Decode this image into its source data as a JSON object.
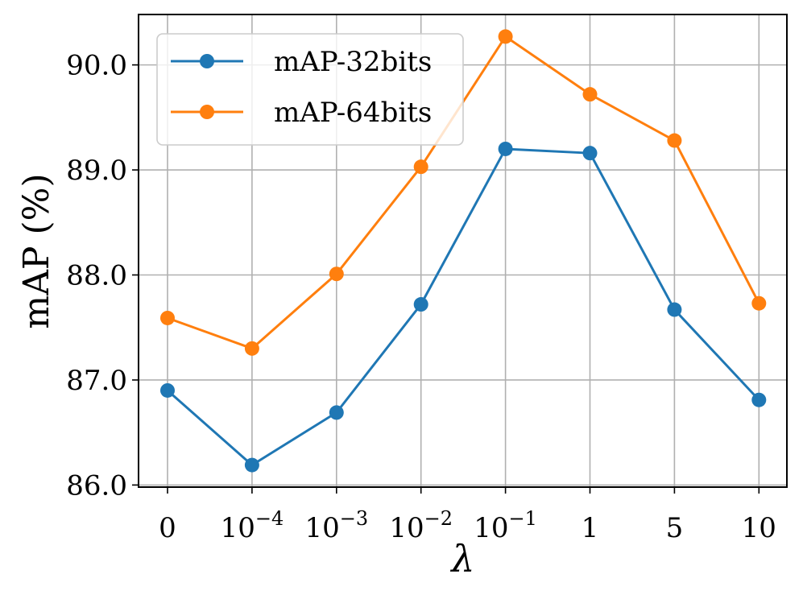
{
  "chart_data": {
    "type": "line",
    "title": "",
    "xlabel": "λ",
    "ylabel": "mAP (%)",
    "categories": [
      {
        "base": "0",
        "exp": ""
      },
      {
        "base": "10",
        "exp": "−4"
      },
      {
        "base": "10",
        "exp": "−3"
      },
      {
        "base": "10",
        "exp": "−2"
      },
      {
        "base": "10",
        "exp": "−1"
      },
      {
        "base": "1",
        "exp": ""
      },
      {
        "base": "5",
        "exp": ""
      },
      {
        "base": "10",
        "exp": ""
      }
    ],
    "ylim": [
      85.98,
      90.48
    ],
    "yticks": [
      "86.0",
      "87.0",
      "88.0",
      "89.0",
      "90.0"
    ],
    "ytick_values": [
      86.0,
      87.0,
      88.0,
      89.0,
      90.0
    ],
    "grid": true,
    "legend_position": "top-left",
    "series": [
      {
        "name": "mAP-32bits",
        "color": "#1f77b4",
        "values": [
          86.9,
          86.19,
          86.69,
          87.72,
          89.2,
          89.16,
          87.67,
          86.81
        ]
      },
      {
        "name": "mAP-64bits",
        "color": "#ff7f0e",
        "values": [
          87.59,
          87.3,
          88.01,
          89.03,
          90.27,
          89.72,
          89.28,
          87.73
        ]
      }
    ]
  }
}
